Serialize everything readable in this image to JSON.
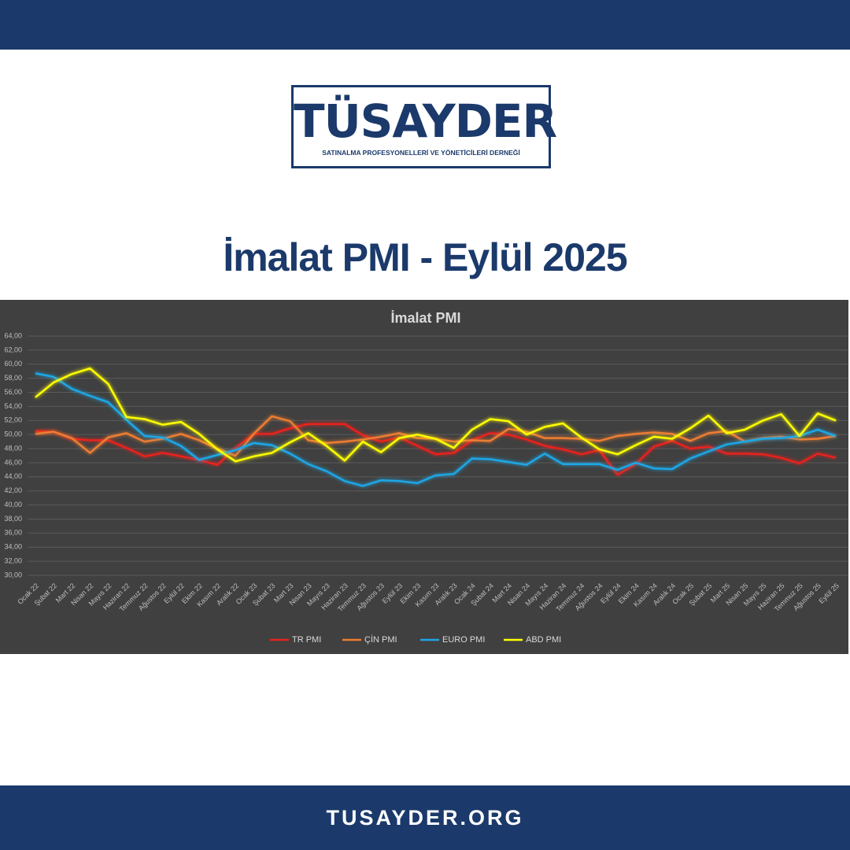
{
  "header": {
    "logo_title": "TÜSAYDER",
    "logo_subtitle": "SATINALMA PROFESYONELLERİ VE YÖNETİCİLERİ DERNEĞİ",
    "headline": "İmalat PMI - Eylül 2025"
  },
  "footer": {
    "website": "TUSAYDER.ORG"
  },
  "chart_data": {
    "type": "line",
    "title": "İmalat PMI",
    "categories": [
      "Ocak 22",
      "Şubat 22",
      "Mart 22",
      "Nisan 22",
      "Mayıs 22",
      "Haziran 22",
      "Temmuz 22",
      "Ağustos 22",
      "Eylül 22",
      "Ekim 22",
      "Kasım 22",
      "Aralık 22",
      "Ocak 23",
      "Şubat 23",
      "Mart 23",
      "Nisan 23",
      "Mayıs 23",
      "Haziran 23",
      "Temmuz 23",
      "Ağustos 23",
      "Eylül 23",
      "Ekim 23",
      "Kasım 23",
      "Aralık 23",
      "Ocak 24",
      "Şubat 24",
      "Mart 24",
      "Nisan 24",
      "Mayıs 24",
      "Haziran 24",
      "Temmuz 24",
      "Ağustos 24",
      "Eylül 24",
      "Ekim 24",
      "Kasım 24",
      "Aralık 24",
      "Ocak 25",
      "Şubat 25",
      "Mart 25",
      "Nisan 25",
      "Mayıs 25",
      "Haziran 25",
      "Temmuz 25",
      "Ağustos 25",
      "Eylül 25"
    ],
    "series": [
      {
        "name": "TR PMI",
        "color": "#e8231f",
        "values": [
          50.5,
          50.4,
          49.4,
          49.2,
          49.2,
          48.1,
          46.9,
          47.4,
          46.9,
          46.4,
          45.7,
          48.1,
          50.1,
          50.1,
          50.9,
          51.5,
          51.5,
          51.5,
          49.9,
          49.0,
          49.6,
          48.4,
          47.2,
          47.4,
          49.2,
          50.2,
          50.0,
          49.3,
          48.4,
          47.9,
          47.2,
          47.8,
          44.3,
          45.8,
          48.3,
          49.1,
          48.0,
          48.3,
          47.3,
          47.3,
          47.2,
          46.7,
          45.9,
          47.3,
          46.7
        ]
      },
      {
        "name": "ÇİN PMI",
        "color": "#ed7d31",
        "values": [
          50.1,
          50.4,
          49.5,
          47.4,
          49.6,
          50.2,
          49.0,
          49.4,
          50.1,
          49.2,
          48.0,
          47.0,
          50.1,
          52.6,
          51.9,
          49.2,
          48.8,
          49.0,
          49.3,
          49.7,
          50.2,
          49.5,
          49.4,
          49.0,
          49.2,
          49.1,
          50.8,
          50.4,
          49.5,
          49.5,
          49.4,
          49.1,
          49.8,
          50.1,
          50.3,
          50.1,
          49.1,
          50.2,
          50.5,
          49.0,
          49.5,
          49.7,
          49.3,
          49.4,
          49.8
        ]
      },
      {
        "name": "EURO PMI",
        "color": "#1fa7e6",
        "values": [
          58.7,
          58.2,
          56.5,
          55.5,
          54.6,
          52.1,
          49.8,
          49.6,
          48.4,
          46.4,
          47.1,
          47.8,
          48.8,
          48.5,
          47.3,
          45.8,
          44.8,
          43.4,
          42.7,
          43.5,
          43.4,
          43.1,
          44.2,
          44.4,
          46.6,
          46.5,
          46.1,
          45.7,
          47.3,
          45.8,
          45.8,
          45.8,
          45.0,
          46.0,
          45.2,
          45.1,
          46.6,
          47.6,
          48.6,
          49.0,
          49.4,
          49.5,
          49.8,
          50.7,
          49.8
        ]
      },
      {
        "name": "ABD PMI",
        "color": "#ffff00",
        "values": [
          55.3,
          57.4,
          58.6,
          59.4,
          57.2,
          52.5,
          52.2,
          51.4,
          51.8,
          50.1,
          47.9,
          46.2,
          46.9,
          47.4,
          48.9,
          50.2,
          48.4,
          46.3,
          49.0,
          47.5,
          49.5,
          50.0,
          49.4,
          48.1,
          50.7,
          52.2,
          51.9,
          50.0,
          51.1,
          51.6,
          49.6,
          47.9,
          47.2,
          48.5,
          49.7,
          49.4,
          50.9,
          52.7,
          50.2,
          50.7,
          52.0,
          52.9,
          49.8,
          53.0,
          52.0
        ]
      }
    ],
    "ylim": [
      30,
      64
    ],
    "yticks": [
      {
        "value": 30,
        "label": "30,00"
      },
      {
        "value": 32,
        "label": "32,00"
      },
      {
        "value": 34,
        "label": "34,00"
      },
      {
        "value": 36,
        "label": "36,00"
      },
      {
        "value": 38,
        "label": "38,00"
      },
      {
        "value": 40,
        "label": "40,00"
      },
      {
        "value": 42,
        "label": "42,00"
      },
      {
        "value": 44,
        "label": "44,00"
      },
      {
        "value": 46,
        "label": "46,00"
      },
      {
        "value": 48,
        "label": "48,00"
      },
      {
        "value": 50,
        "label": "50,00"
      },
      {
        "value": 52,
        "label": "52,00"
      },
      {
        "value": 54,
        "label": "54,00"
      },
      {
        "value": 56,
        "label": "56,00"
      },
      {
        "value": 58,
        "label": "58,00"
      },
      {
        "value": 60,
        "label": "60,00"
      },
      {
        "value": 62,
        "label": "62,00"
      },
      {
        "value": 64,
        "label": "64,00"
      }
    ],
    "grid": true,
    "legend": "bottom"
  }
}
